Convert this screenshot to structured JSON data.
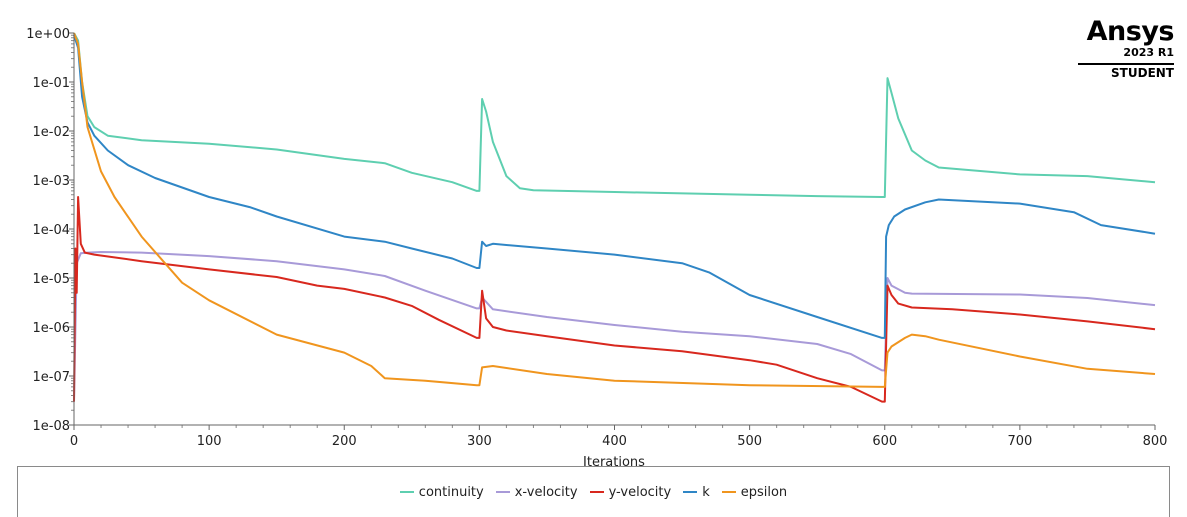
{
  "chart_data": {
    "type": "line",
    "xlabel": "Iterations",
    "ylabel": "",
    "yscale": "log",
    "xlim": [
      0,
      800
    ],
    "ylim": [
      1e-08,
      1
    ],
    "x_ticks": [
      "0",
      "100",
      "200",
      "300",
      "400",
      "500",
      "600",
      "700",
      "800"
    ],
    "y_ticks": [
      "1e-08",
      "1e-07",
      "1e-06",
      "1e-05",
      "1e-04",
      "1e-03",
      "1e-02",
      "1e-01",
      "1e+00"
    ],
    "legend_position": "bottom",
    "series": [
      {
        "name": "continuity",
        "color": "#5ecfb0",
        "x": [
          0,
          3,
          6,
          10,
          15,
          25,
          50,
          100,
          150,
          200,
          230,
          250,
          280,
          298,
          300,
          302,
          305,
          310,
          320,
          330,
          340,
          400,
          500,
          550,
          598,
          600,
          602,
          605,
          610,
          620,
          630,
          640,
          700,
          750,
          800
        ],
        "y": [
          1.0,
          0.7,
          0.1,
          0.02,
          0.012,
          0.008,
          0.0065,
          0.0055,
          0.0042,
          0.0027,
          0.0022,
          0.0014,
          0.0009,
          0.0006,
          0.0006,
          0.045,
          0.025,
          0.006,
          0.0012,
          0.00068,
          0.00062,
          0.00057,
          0.0005,
          0.00047,
          0.00045,
          0.00045,
          0.12,
          0.06,
          0.018,
          0.004,
          0.0025,
          0.0018,
          0.0013,
          0.0012,
          0.0009
        ]
      },
      {
        "name": "x-velocity",
        "color": "#a89ad8",
        "x": [
          0,
          2,
          5,
          10,
          20,
          50,
          100,
          150,
          200,
          230,
          260,
          298,
          300,
          302,
          310,
          350,
          400,
          450,
          500,
          550,
          575,
          598,
          600,
          602,
          605,
          615,
          620,
          700,
          750,
          800
        ],
        "y": [
          3e-08,
          2e-05,
          3.2e-05,
          3.3e-05,
          3.4e-05,
          3.3e-05,
          2.8e-05,
          2.2e-05,
          1.5e-05,
          1.1e-05,
          5.5e-06,
          2.4e-06,
          2.4e-06,
          4e-06,
          2.3e-06,
          1.6e-06,
          1.1e-06,
          8e-07,
          6.5e-07,
          4.5e-07,
          2.8e-07,
          1.3e-07,
          1.3e-07,
          1e-05,
          7e-06,
          5e-06,
          4.8e-06,
          4.6e-06,
          3.9e-06,
          2.8e-06
        ]
      },
      {
        "name": "y-velocity",
        "color": "#d8281e",
        "x": [
          0,
          1,
          2,
          3,
          5,
          8,
          15,
          50,
          100,
          150,
          180,
          200,
          230,
          250,
          270,
          298,
          300,
          302,
          305,
          310,
          320,
          350,
          400,
          450,
          500,
          520,
          550,
          575,
          598,
          600,
          602,
          605,
          610,
          620,
          650,
          700,
          750,
          800
        ],
        "y": [
          3e-08,
          4e-05,
          5e-06,
          0.00045,
          5e-05,
          3.3e-05,
          3e-05,
          2.2e-05,
          1.5e-05,
          1.05e-05,
          7e-06,
          6e-06,
          4e-06,
          2.7e-06,
          1.4e-06,
          6e-07,
          6e-07,
          5.5e-06,
          1.5e-06,
          1e-06,
          8.5e-07,
          6.5e-07,
          4.2e-07,
          3.2e-07,
          2.1e-07,
          1.7e-07,
          9e-08,
          6e-08,
          3e-08,
          3e-08,
          7e-06,
          4.5e-06,
          3e-06,
          2.5e-06,
          2.3e-06,
          1.8e-06,
          1.3e-06,
          9e-07
        ]
      },
      {
        "name": "k",
        "color": "#2f86c6",
        "x": [
          0,
          3,
          6,
          10,
          15,
          25,
          40,
          60,
          100,
          130,
          150,
          200,
          230,
          250,
          280,
          298,
          300,
          302,
          305,
          310,
          350,
          400,
          450,
          470,
          500,
          550,
          598,
          600,
          601,
          603,
          607,
          615,
          630,
          640,
          700,
          740,
          760,
          800
        ],
        "y": [
          0.9,
          0.5,
          0.05,
          0.015,
          0.008,
          0.004,
          0.002,
          0.0011,
          0.00045,
          0.00028,
          0.00018,
          7e-05,
          5.5e-05,
          4e-05,
          2.5e-05,
          1.6e-05,
          1.6e-05,
          5.5e-05,
          4.5e-05,
          5e-05,
          4e-05,
          3e-05,
          2e-05,
          1.3e-05,
          4.5e-06,
          1.6e-06,
          6e-07,
          6e-07,
          7e-05,
          0.00012,
          0.00018,
          0.00025,
          0.00035,
          0.0004,
          0.00033,
          0.00022,
          0.00012,
          8e-05
        ]
      },
      {
        "name": "epsilon",
        "color": "#f0951e",
        "x": [
          0,
          3,
          6,
          10,
          20,
          30,
          50,
          80,
          100,
          150,
          200,
          220,
          230,
          260,
          298,
          300,
          302,
          310,
          350,
          400,
          500,
          598,
          600,
          602,
          605,
          615,
          620,
          630,
          640,
          700,
          750,
          800
        ],
        "y": [
          1.0,
          0.6,
          0.1,
          0.012,
          0.0015,
          0.00045,
          7e-05,
          8e-06,
          3.5e-06,
          7e-07,
          3e-07,
          1.6e-07,
          9e-08,
          8e-08,
          6.5e-08,
          6.5e-08,
          1.5e-07,
          1.6e-07,
          1.1e-07,
          8e-08,
          6.5e-08,
          6e-08,
          6e-08,
          3e-07,
          4e-07,
          6e-07,
          7e-07,
          6.5e-07,
          5.5e-07,
          2.5e-07,
          1.4e-07,
          1.1e-07
        ]
      }
    ]
  },
  "logo": {
    "brand": "Ansys",
    "version": "2023 R1",
    "edition": "STUDENT"
  }
}
